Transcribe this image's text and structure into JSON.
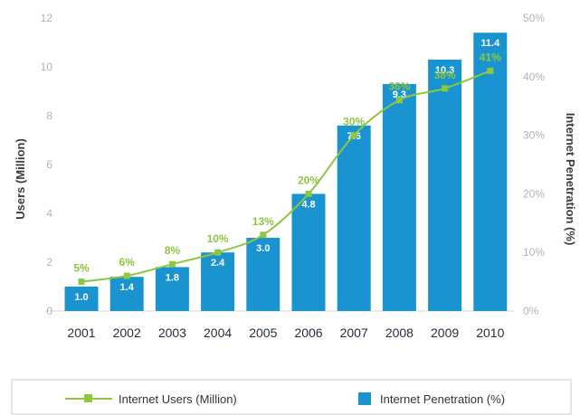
{
  "chart_data": {
    "type": "bar+line",
    "categories": [
      "2001",
      "2002",
      "2003",
      "2004",
      "2005",
      "2006",
      "2007",
      "2008",
      "2009",
      "2010"
    ],
    "bar_series": {
      "values": [
        1.0,
        1.4,
        1.8,
        2.4,
        3.0,
        4.8,
        7.6,
        9.3,
        10.3,
        11.4
      ],
      "labels": [
        "1.0",
        "1.4",
        "1.8",
        "2.4",
        "3.0",
        "4.8",
        "7.6",
        "9.3",
        "10.3",
        "11.4"
      ],
      "color": "#1a94d0"
    },
    "line_series": {
      "values": [
        5,
        6,
        8,
        10,
        13,
        20,
        30,
        36,
        38,
        41
      ],
      "labels": [
        "5%",
        "6%",
        "8%",
        "10%",
        "13%",
        "20%",
        "30%",
        "36%",
        "38%",
        "41%"
      ],
      "color": "#8dc63f"
    },
    "y_left": {
      "label": "Users (Million)",
      "range": [
        0,
        12
      ],
      "ticks": [
        "0",
        "2",
        "4",
        "6",
        "8",
        "10",
        "12"
      ]
    },
    "y_right": {
      "label": "Internet Penetration (%)",
      "range": [
        0,
        50
      ],
      "ticks": [
        "0%",
        "10%",
        "20%",
        "30%",
        "40%",
        "50%"
      ]
    },
    "legend": {
      "placement": "bottom",
      "line_entry": "Internet Users (Million)",
      "bar_entry": "Internet Penetration (%)"
    }
  }
}
